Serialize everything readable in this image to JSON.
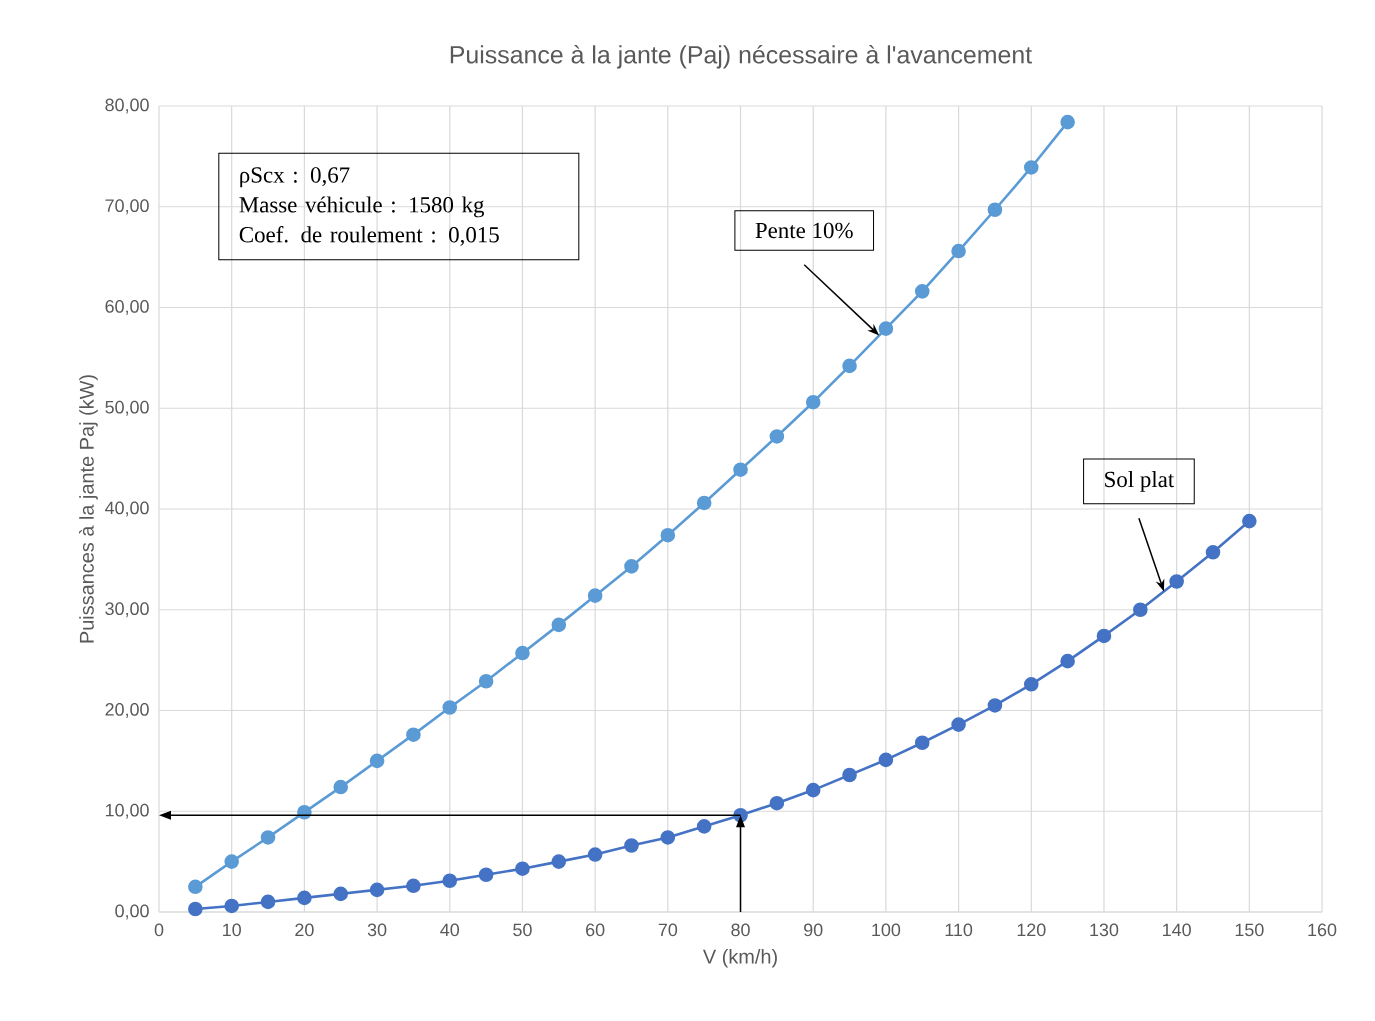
{
  "chart_data": {
    "type": "line",
    "title": "Puissance à la jante (Paj) nécessaire  à l'avancement",
    "xlabel": "V (km/h)",
    "ylabel": "Puissances à la jante Paj  (kW)",
    "x": [
      5,
      10,
      15,
      20,
      25,
      30,
      35,
      40,
      45,
      50,
      55,
      60,
      65,
      70,
      75,
      80,
      85,
      90,
      95,
      100,
      105,
      110,
      115,
      120,
      125,
      130,
      135,
      140,
      145,
      150
    ],
    "series": [
      {
        "name": "Pente 10%",
        "color": "#5b9bd5",
        "x": [
          5,
          10,
          15,
          20,
          25,
          30,
          35,
          40,
          45,
          50,
          55,
          60,
          65,
          70,
          75,
          80,
          85,
          90,
          95,
          100,
          105,
          110,
          115,
          120,
          125
        ],
        "values": [
          2.5,
          5.0,
          7.4,
          9.9,
          12.4,
          15.0,
          17.6,
          20.3,
          22.9,
          25.7,
          28.5,
          31.4,
          34.3,
          37.4,
          40.6,
          43.9,
          47.2,
          50.6,
          54.2,
          57.9,
          61.6,
          65.6,
          69.7,
          73.9,
          78.4
        ]
      },
      {
        "name": "Sol plat",
        "color": "#4472c4",
        "values": [
          0.3,
          0.6,
          1.0,
          1.4,
          1.8,
          2.2,
          2.6,
          3.1,
          3.7,
          4.3,
          5.0,
          5.7,
          6.6,
          7.4,
          8.5,
          9.6,
          10.8,
          12.1,
          13.6,
          15.1,
          16.8,
          18.6,
          20.5,
          22.6,
          24.9,
          27.4,
          30.0,
          32.8,
          35.7,
          38.8
        ]
      }
    ],
    "xlim": [
      0,
      160
    ],
    "xticks": [
      0,
      10,
      20,
      30,
      40,
      50,
      60,
      70,
      80,
      90,
      100,
      110,
      120,
      130,
      140,
      150,
      160
    ],
    "ylim": [
      0,
      80
    ],
    "yticks": [
      {
        "value": 0,
        "label": "0,00"
      },
      {
        "value": 10,
        "label": "10,00"
      },
      {
        "value": 20,
        "label": "20,00"
      },
      {
        "value": 30,
        "label": "30,00"
      },
      {
        "value": 40,
        "label": "40,00"
      },
      {
        "value": 50,
        "label": "50,00"
      },
      {
        "value": 60,
        "label": "60,00"
      },
      {
        "value": 70,
        "label": "70,00"
      },
      {
        "value": 80,
        "label": "80,00"
      }
    ],
    "grid": true,
    "marker": "circle",
    "line_style": "solid",
    "legend": false,
    "annotations": [
      "ρScx : 0,67",
      "Masse véhicule : 1580 kg",
      "Coef. de roulement : 0,015"
    ]
  }
}
